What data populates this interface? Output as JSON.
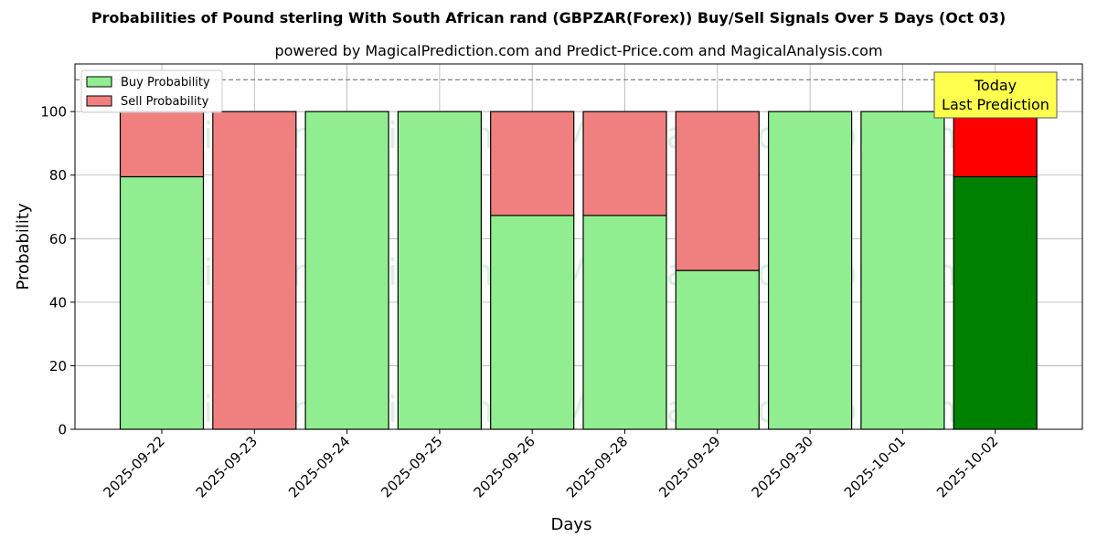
{
  "title": "Probabilities of Pound sterling With South African rand (GBPZAR(Forex)) Buy/Sell Signals Over 5 Days (Oct 03)",
  "subtitle": "powered by MagicalPrediction.com and Predict-Price.com and MagicalAnalysis.com",
  "watermarks": [
    "MagicalAnalysis.com",
    "MagicalPrediction.com"
  ],
  "chart_data": {
    "type": "bar",
    "stacked": true,
    "categories": [
      "2025-09-22",
      "2025-09-23",
      "2025-09-24",
      "2025-09-25",
      "2025-09-26",
      "2025-09-28",
      "2025-09-29",
      "2025-09-30",
      "2025-10-01",
      "2025-10-02"
    ],
    "series": [
      {
        "name": "Buy Probability",
        "values": [
          79.5,
          0,
          100,
          100,
          67.3,
          67.3,
          50,
          100,
          100,
          79.5
        ],
        "color": "#90ee90",
        "highlight_color": "#008000"
      },
      {
        "name": "Sell Probability",
        "values": [
          20.5,
          100,
          0,
          0,
          32.7,
          32.7,
          50,
          0,
          0,
          20.5
        ],
        "color": "#f08080",
        "highlight_color": "#ff0000"
      }
    ],
    "highlight_index": 9,
    "xlabel": "Days",
    "ylabel": "Probability",
    "ylim": [
      0,
      115
    ],
    "yticks": [
      0,
      20,
      40,
      60,
      80,
      100
    ],
    "reference_line": 110,
    "grid": true,
    "legend_position": "top-left",
    "annotation": {
      "lines": [
        "Today",
        "Last Prediction"
      ],
      "background": "#ffff4d"
    }
  }
}
